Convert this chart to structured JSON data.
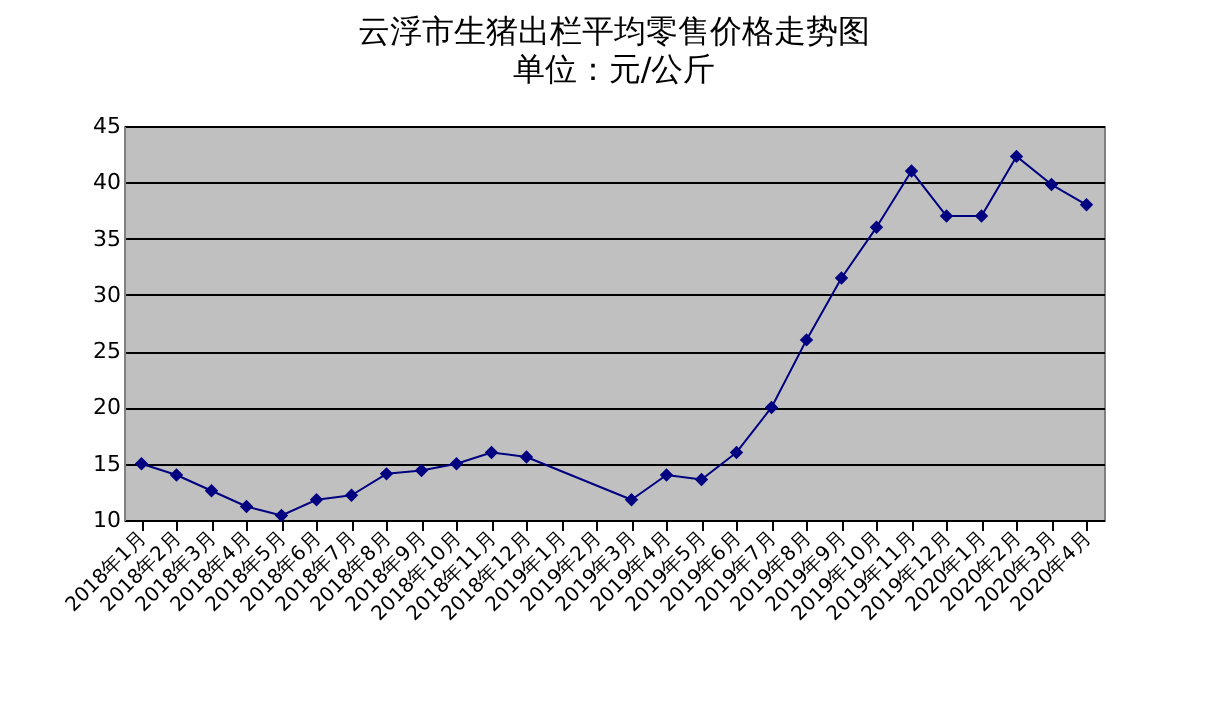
{
  "chart_data": {
    "type": "line",
    "title": "云浮市生猪出栏平均零售价格走势图",
    "subtitle": "单位：元/公斤",
    "categories": [
      "2018年1月",
      "2018年2月",
      "2018年3月",
      "2018年4月",
      "2018年5月",
      "2018年6月",
      "2018年7月",
      "2018年8月",
      "2018年9月",
      "2018年10月",
      "2018年11月",
      "2018年12月",
      "2019年1月",
      "2019年2月",
      "2019年3月",
      "2019年4月",
      "2019年5月",
      "2019年6月",
      "2019年7月",
      "2019年8月",
      "2019年9月",
      "2019年10月",
      "2019年11月",
      "2019年12月",
      "2020年1月",
      "2020年2月",
      "2020年3月",
      "2020年4月"
    ],
    "series": [
      {
        "color": "#000080",
        "values": [
          15,
          14,
          12.6,
          11.2,
          10.4,
          11.8,
          12.2,
          14.1,
          14.4,
          15,
          16,
          15.6,
          null,
          null,
          11.8,
          14,
          13.6,
          16,
          20,
          26,
          31.5,
          36,
          41,
          37,
          37,
          42.3,
          39.8,
          38
        ]
      }
    ],
    "ylim": [
      10,
      45
    ],
    "yticks": [
      10,
      15,
      20,
      25,
      30,
      35,
      40,
      45
    ],
    "grid": "y",
    "marker": "diamond",
    "line_style": "solid"
  }
}
